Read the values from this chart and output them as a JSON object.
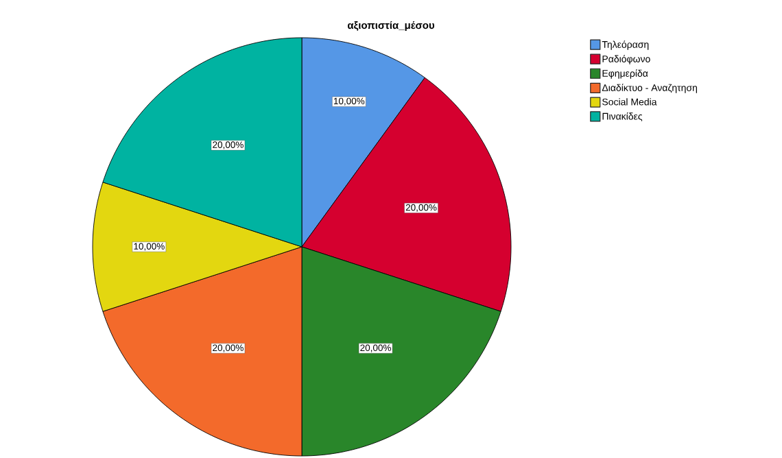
{
  "chart_data": {
    "type": "pie",
    "title": "αξιοπιστία_μέσου",
    "categories": [
      "Τηλεόραση",
      "Ραδιόφωνο",
      "Εφημερίδα",
      "Διαδίκτυο - Αναζητηση",
      "Social Media",
      "Πινακίδες"
    ],
    "values": [
      10,
      20,
      20,
      20,
      10,
      20
    ],
    "colors": [
      "#5597e6",
      "#d5002f",
      "#29862a",
      "#f36a2b",
      "#e3d710",
      "#00b3a1"
    ],
    "value_labels": [
      "10,00%",
      "20,00%",
      "20,00%",
      "20,00%",
      "10,00%",
      "20,00%"
    ],
    "legend": "top right"
  }
}
